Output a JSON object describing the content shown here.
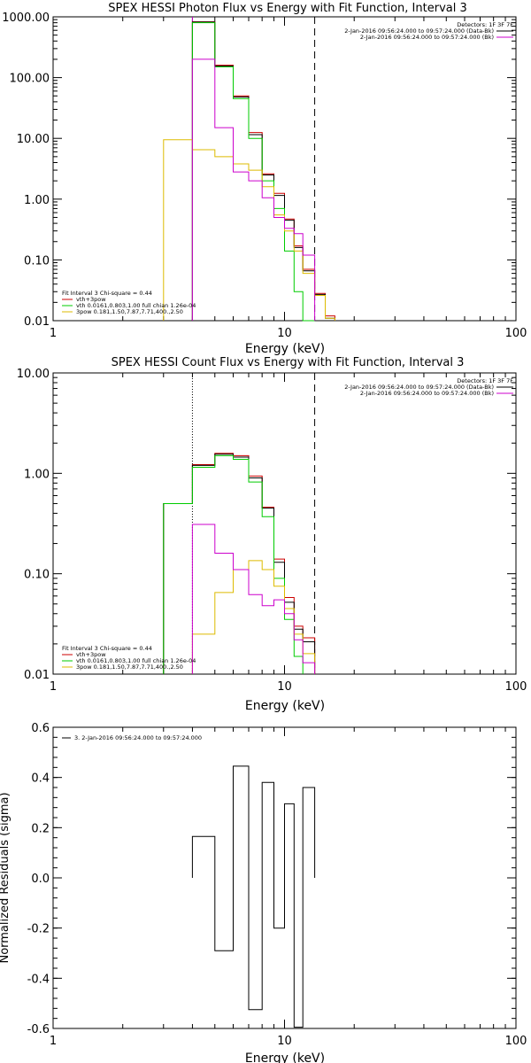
{
  "chart_data": [
    {
      "type": "line",
      "title": "SPEX HESSI Photon Flux vs Energy with Fit Function, Interval 3",
      "xlabel": "Energy (keV)",
      "ylabel": "",
      "xscale": "log",
      "yscale": "log",
      "xlim": [
        1,
        100
      ],
      "ylim": [
        0.01,
        1000
      ],
      "xticks": [
        "1",
        "10",
        "100"
      ],
      "yticks": [
        "0.01",
        "0.10",
        "1.00",
        "10.00",
        "100.00",
        "1000.00"
      ],
      "grid": false,
      "vlines": [
        {
          "x": 4.0,
          "style": "solid",
          "color": "#cc00cc"
        },
        {
          "x": 13.5,
          "style": "dashed",
          "color": "#000000"
        }
      ],
      "info": {
        "detectors": "Detectors: 1F 3F 7F",
        "lines": [
          {
            "text": "2-Jan-2016 09:56:24.000 to 09:57:24.000 (Data-Bk)",
            "color": "#000000"
          },
          {
            "text": "2-Jan-2016 09:56:24.000 to 09:57:24.000 (Bk)",
            "color": "#cc00cc"
          }
        ]
      },
      "fit_legend": {
        "header": "Fit Interval  3    Chi-square = 0.44",
        "items": [
          {
            "text": "vth+3pow",
            "color": "#cc0000"
          },
          {
            "text": "vth 0.0161,0.803,1.00  full chian 1.26e-04",
            "color": "#00cc00"
          },
          {
            "text": "3pow 0.181,1.50,7.87,7.71,400.,2.50",
            "color": "#ddbb00"
          }
        ]
      },
      "bin_edges": [
        3.0,
        4.0,
        5.0,
        6.0,
        7.0,
        8.0,
        9.0,
        10.0,
        11.0,
        12.0,
        13.5,
        15.0,
        16.5
      ],
      "series": [
        {
          "name": "vth+3pow",
          "color": "#cc0000",
          "values": [
            null,
            830,
            160,
            50,
            12.5,
            2.6,
            1.25,
            0.47,
            0.17,
            0.07,
            0.028,
            0.012
          ]
        },
        {
          "color": "#000000",
          "values": [
            null,
            820,
            155,
            48,
            11.5,
            2.5,
            1.15,
            0.45,
            0.16,
            0.066,
            0.027,
            0.011
          ]
        },
        {
          "name": "vth",
          "color": "#00cc00",
          "values": [
            null,
            800,
            150,
            45,
            10,
            2.0,
            0.7,
            0.14,
            0.03,
            0.004,
            null,
            null
          ]
        },
        {
          "name": "3pow",
          "color": "#ddbb00",
          "values": [
            9.5,
            6.5,
            5.0,
            3.8,
            3.0,
            1.6,
            0.55,
            0.3,
            0.14,
            0.06,
            0.026,
            0.011
          ]
        },
        {
          "name": "Bk",
          "color": "#cc00cc",
          "values": [
            null,
            200,
            15,
            2.8,
            2.0,
            1.05,
            0.5,
            0.33,
            0.27,
            0.12,
            null,
            null
          ]
        }
      ]
    },
    {
      "type": "line",
      "title": "SPEX HESSI Count Flux vs Energy with Fit Function, Interval 3",
      "xlabel": "Energy (keV)",
      "ylabel": "",
      "xscale": "log",
      "yscale": "log",
      "xlim": [
        1,
        100
      ],
      "ylim": [
        0.01,
        10
      ],
      "xticks": [
        "1",
        "10",
        "100"
      ],
      "yticks": [
        "0.01",
        "0.10",
        "1.00",
        "10.00"
      ],
      "grid": false,
      "vlines": [
        {
          "x": 4.0,
          "style": "dotted",
          "color": "#000000"
        },
        {
          "x": 13.5,
          "style": "dashed",
          "color": "#000000"
        }
      ],
      "info": {
        "detectors": "Detectors: 1F 3F 7F",
        "lines": [
          {
            "text": "2-Jan-2016 09:56:24.000 to 09:57:24.000 (Data-Bk)",
            "color": "#000000"
          },
          {
            "text": "2-Jan-2016 09:56:24.000 to 09:57:24.000 (Bk)",
            "color": "#cc00cc"
          }
        ]
      },
      "fit_legend": {
        "header": "Fit Interval  3    Chi-square = 0.44",
        "items": [
          {
            "text": "vth+3pow",
            "color": "#cc0000"
          },
          {
            "text": "vth 0.0161,0.803,1.00  full chian 1.26e-04",
            "color": "#00cc00"
          },
          {
            "text": "3pow 0.181,1.50,7.87,7.71,400.,2.50",
            "color": "#ddbb00"
          }
        ]
      },
      "bin_edges": [
        3.0,
        4.0,
        5.0,
        6.0,
        7.0,
        8.0,
        9.0,
        10.0,
        11.0,
        12.0,
        13.5
      ],
      "series": [
        {
          "name": "vth+3pow",
          "color": "#cc0000",
          "values": [
            0.5,
            1.22,
            1.58,
            1.5,
            0.94,
            0.46,
            0.14,
            0.058,
            0.03,
            0.023
          ]
        },
        {
          "color": "#000000",
          "values": [
            0.5,
            1.2,
            1.55,
            1.45,
            0.9,
            0.45,
            0.13,
            0.052,
            0.028,
            0.021
          ]
        },
        {
          "name": "vth",
          "color": "#00cc00",
          "values": [
            0.5,
            1.15,
            1.5,
            1.38,
            0.82,
            0.37,
            0.09,
            0.035,
            0.015,
            null
          ]
        },
        {
          "name": "3pow",
          "color": "#ddbb00",
          "values": [
            null,
            0.025,
            0.065,
            0.11,
            0.135,
            0.11,
            0.075,
            0.045,
            0.025,
            0.016
          ]
        },
        {
          "name": "Bk",
          "color": "#cc00cc",
          "values": [
            null,
            0.31,
            0.16,
            0.11,
            0.062,
            0.048,
            0.055,
            0.04,
            0.022,
            0.013
          ]
        }
      ]
    },
    {
      "type": "line",
      "title": "",
      "xlabel": "Energy (keV)",
      "ylabel": "Normalized Residuals (sigma)",
      "xscale": "log",
      "yscale": "linear",
      "xlim": [
        1,
        100
      ],
      "ylim": [
        -0.6,
        0.6
      ],
      "xticks": [
        "1",
        "10",
        "100"
      ],
      "yticks": [
        "-0.6",
        "-0.4",
        "-0.2",
        "0.0",
        "0.2",
        "0.4",
        "0.6"
      ],
      "grid": false,
      "legend": {
        "text": "3.  2-Jan-2016 09:56:24.000 to 09:57:24.000",
        "placement": "top-left"
      },
      "bin_edges": [
        4.0,
        5.0,
        6.0,
        7.0,
        8.0,
        9.0,
        10.0,
        11.0,
        12.0,
        13.5
      ],
      "series": [
        {
          "color": "#000000",
          "values": [
            0.165,
            -0.29,
            0.445,
            -0.525,
            0.38,
            -0.2,
            0.295,
            -0.595,
            0.36
          ]
        }
      ]
    }
  ]
}
